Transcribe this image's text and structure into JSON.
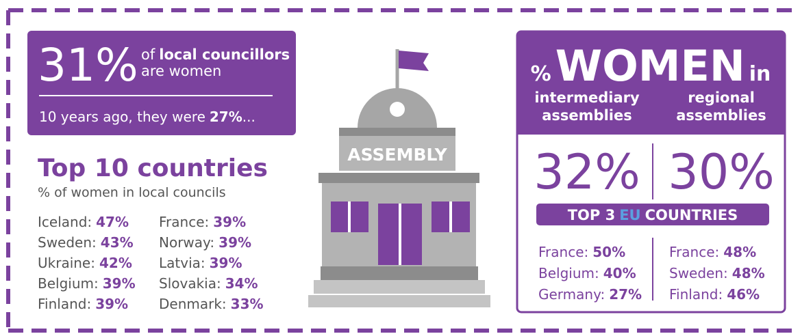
{
  "headline": {
    "value": "31%",
    "text_prefix": "of",
    "text_bold": "local councillors",
    "text_line2": "are women",
    "note": "10 years ago, they were",
    "note_value": "27%",
    "note_suffix": "..."
  },
  "top_countries": {
    "title": "Top 10 countries",
    "subtitle": "% of women in local councils",
    "columns": [
      [
        {
          "country": "Iceland:",
          "value": "47%"
        },
        {
          "country": "Sweden:",
          "value": "43%"
        },
        {
          "country": "Ukraine:",
          "value": "42%"
        },
        {
          "country": "Belgium:",
          "value": "39%"
        },
        {
          "country": "Finland:",
          "value": "39%"
        }
      ],
      [
        {
          "country": "France:",
          "value": "39%"
        },
        {
          "country": "Norway:",
          "value": "39%"
        },
        {
          "country": "Latvia:",
          "value": "39%"
        },
        {
          "country": "Slovakia:",
          "value": "34%"
        },
        {
          "country": "Denmark:",
          "value": "33%"
        }
      ]
    ]
  },
  "building": {
    "sign": "ASSEMBLY"
  },
  "assemblies": {
    "title_prefix": "%",
    "title_main": "WOMEN",
    "title_suffix": "in",
    "banner_prefix": "TOP 3",
    "banner_highlight": "EU",
    "banner_suffix": "COUNTRIES",
    "columns": [
      {
        "heading": [
          "intermediary",
          "assemblies"
        ],
        "value": "32%",
        "top": [
          {
            "country": "France:",
            "value": "50%"
          },
          {
            "country": "Belgium:",
            "value": "40%"
          },
          {
            "country": "Germany:",
            "value": "27%"
          }
        ]
      },
      {
        "heading": [
          "regional",
          "assemblies"
        ],
        "value": "30%",
        "top": [
          {
            "country": "France:",
            "value": "48%"
          },
          {
            "country": "Sweden:",
            "value": "48%"
          },
          {
            "country": "Finland:",
            "value": "46%"
          }
        ]
      }
    ]
  }
}
